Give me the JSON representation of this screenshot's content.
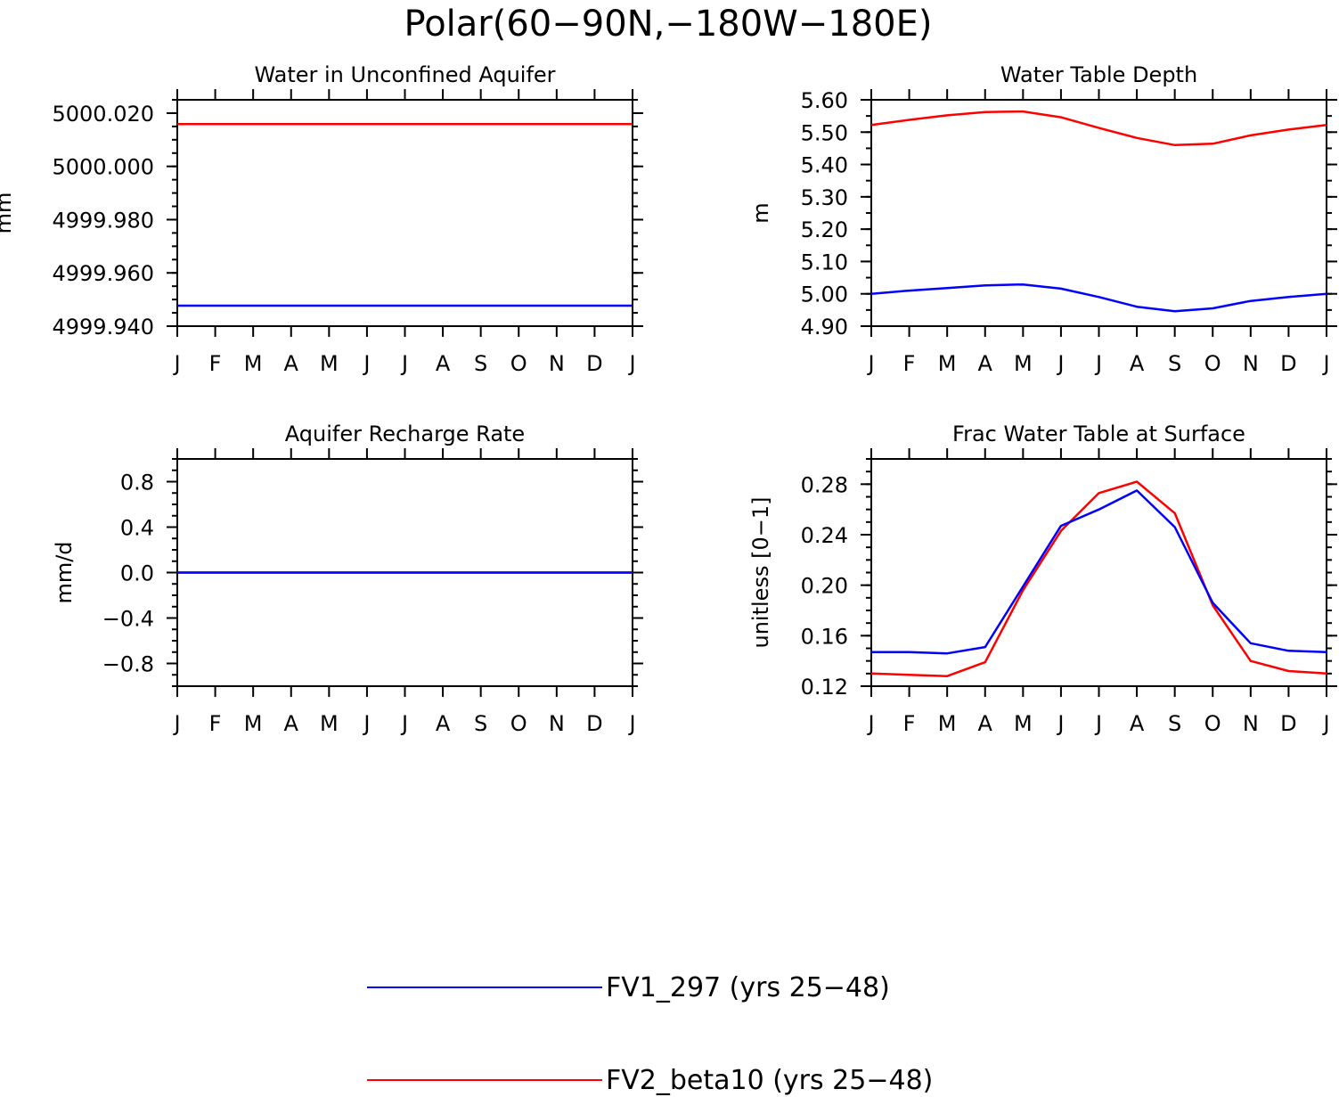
{
  "figure": {
    "title": "Polar(60−90N,−180W−180E)"
  },
  "legend": [
    {
      "label": "FV1_297 (yrs 25−48)",
      "color": "#0000ff"
    },
    {
      "label": "FV2_beta10 (yrs 25−48)",
      "color": "#ff0000"
    }
  ],
  "chart_data": [
    {
      "type": "line",
      "title": "Water in Unconfined Aquifer",
      "xlabel": "",
      "ylabel": "mm",
      "categories": [
        "J",
        "F",
        "M",
        "A",
        "M",
        "J",
        "J",
        "A",
        "S",
        "O",
        "N",
        "D",
        "J"
      ],
      "ylim": [
        4999.94,
        5000.025
      ],
      "yticks": [
        4999.94,
        4999.96,
        4999.98,
        5000.0,
        5000.02
      ],
      "ytick_labels": [
        "4999.940",
        "4999.960",
        "4999.980",
        "5000.000",
        "5000.020"
      ],
      "series": [
        {
          "name": "FV1_297 (yrs 25−48)",
          "color": "#0000ff",
          "values": [
            4999.9477,
            4999.9477,
            4999.9477,
            4999.9477,
            4999.9477,
            4999.9477,
            4999.9477,
            4999.9477,
            4999.9477,
            4999.9477,
            4999.9477,
            4999.9477,
            4999.9477
          ]
        },
        {
          "name": "FV2_beta10 (yrs 25−48)",
          "color": "#ff0000",
          "values": [
            5000.0159,
            5000.0159,
            5000.0159,
            5000.0159,
            5000.0159,
            5000.0159,
            5000.0159,
            5000.0159,
            5000.0159,
            5000.0159,
            5000.0159,
            5000.0159,
            5000.0159
          ]
        }
      ]
    },
    {
      "type": "line",
      "title": "Water Table Depth",
      "xlabel": "",
      "ylabel": "m",
      "categories": [
        "J",
        "F",
        "M",
        "A",
        "M",
        "J",
        "J",
        "A",
        "S",
        "O",
        "N",
        "D",
        "J"
      ],
      "ylim": [
        4.9,
        5.6
      ],
      "yticks": [
        4.9,
        5.0,
        5.1,
        5.2,
        5.3,
        5.4,
        5.5,
        5.6
      ],
      "ytick_labels": [
        "4.90",
        "5.00",
        "5.10",
        "5.20",
        "5.30",
        "5.40",
        "5.50",
        "5.60"
      ],
      "series": [
        {
          "name": "FV1_297 (yrs 25−48)",
          "color": "#0000ff",
          "values": [
            5.0,
            5.01,
            5.018,
            5.026,
            5.029,
            5.016,
            4.99,
            4.96,
            4.946,
            4.955,
            4.978,
            4.99,
            5.0
          ]
        },
        {
          "name": "FV2_beta10 (yrs 25−48)",
          "color": "#ff0000",
          "values": [
            5.522,
            5.538,
            5.552,
            5.562,
            5.564,
            5.546,
            5.513,
            5.482,
            5.46,
            5.464,
            5.49,
            5.508,
            5.522
          ]
        }
      ]
    },
    {
      "type": "line",
      "title": "Aquifer Recharge Rate",
      "xlabel": "",
      "ylabel": "mm/d",
      "categories": [
        "J",
        "F",
        "M",
        "A",
        "M",
        "J",
        "J",
        "A",
        "S",
        "O",
        "N",
        "D",
        "J"
      ],
      "ylim": [
        -1.0,
        1.0
      ],
      "yticks": [
        -0.8,
        -0.4,
        0.0,
        0.4,
        0.8
      ],
      "ytick_labels": [
        "−0.8",
        "−0.4",
        "0.0",
        "0.4",
        "0.8"
      ],
      "series": [
        {
          "name": "FV2_beta10 (yrs 25−48)",
          "color": "#ff0000",
          "values": [
            0,
            0,
            0,
            0,
            0,
            0,
            0,
            0,
            0,
            0,
            0,
            0,
            0
          ]
        },
        {
          "name": "FV1_297 (yrs 25−48)",
          "color": "#0000ff",
          "values": [
            0,
            0,
            0,
            0,
            0,
            0,
            0,
            0,
            0,
            0,
            0,
            0,
            0
          ]
        }
      ]
    },
    {
      "type": "line",
      "title": "Frac Water Table at Surface",
      "xlabel": "",
      "ylabel": "unitless [0−1]",
      "categories": [
        "J",
        "F",
        "M",
        "A",
        "M",
        "J",
        "J",
        "A",
        "S",
        "O",
        "N",
        "D",
        "J"
      ],
      "ylim": [
        0.12,
        0.3
      ],
      "yticks": [
        0.12,
        0.16,
        0.2,
        0.24,
        0.28
      ],
      "ytick_labels": [
        "0.12",
        "0.16",
        "0.20",
        "0.24",
        "0.28"
      ],
      "series": [
        {
          "name": "FV2_beta10 (yrs 25−48)",
          "color": "#ff0000",
          "values": [
            0.13,
            0.129,
            0.128,
            0.139,
            0.196,
            0.243,
            0.273,
            0.282,
            0.257,
            0.184,
            0.14,
            0.132,
            0.13
          ]
        },
        {
          "name": "FV1_297 (yrs 25−48)",
          "color": "#0000ff",
          "values": [
            0.147,
            0.147,
            0.146,
            0.151,
            0.199,
            0.247,
            0.26,
            0.275,
            0.246,
            0.186,
            0.154,
            0.148,
            0.147
          ]
        }
      ]
    }
  ]
}
